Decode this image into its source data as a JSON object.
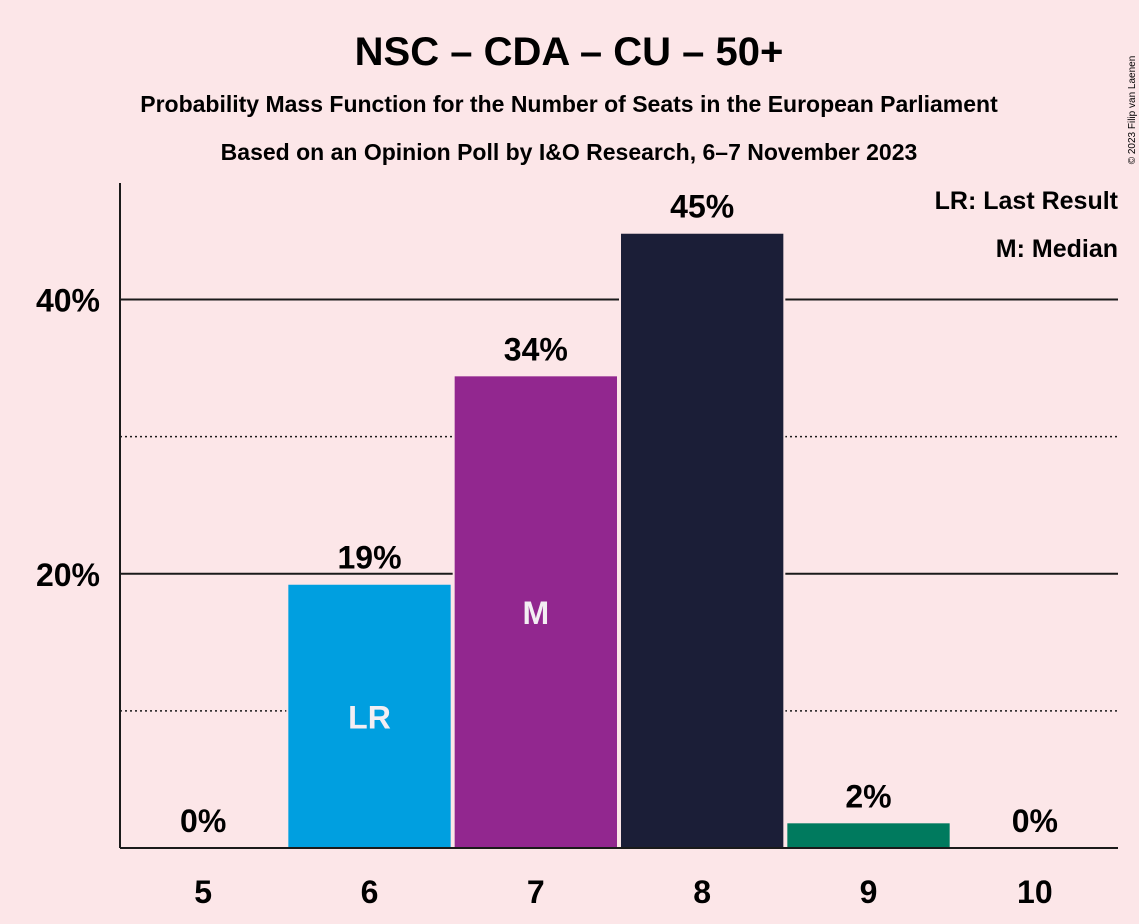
{
  "chart_data": {
    "type": "bar",
    "title": "NSC – CDA – CU – 50+",
    "subtitle_line1": "Probability Mass Function for the Number of Seats in the European Parliament",
    "subtitle_line2": "Based on an Opinion Poll by I&O Research, 6–7 November 2023",
    "copyright": "© 2023 Filip van Laenen",
    "categories": [
      "5",
      "6",
      "7",
      "8",
      "9",
      "10"
    ],
    "values": [
      0,
      19.2,
      34.4,
      44.8,
      1.8,
      0
    ],
    "value_labels": [
      "0%",
      "19%",
      "34%",
      "45%",
      "2%",
      "0%"
    ],
    "bar_colors": [
      "#009fe0",
      "#009fe0",
      "#92278f",
      "#1b1e37",
      "#007a5e",
      "#007a5e"
    ],
    "inner_labels": [
      "",
      "LR",
      "M",
      "",
      "",
      ""
    ],
    "ylim": [
      0,
      48.5
    ],
    "ytick_values": [
      20,
      40
    ],
    "ytick_labels": [
      "20%",
      "40%"
    ],
    "minor_gridlines": [
      10,
      30
    ],
    "legend": [
      "LR: Last Result",
      "M: Median"
    ],
    "legend_position": "top-right"
  }
}
